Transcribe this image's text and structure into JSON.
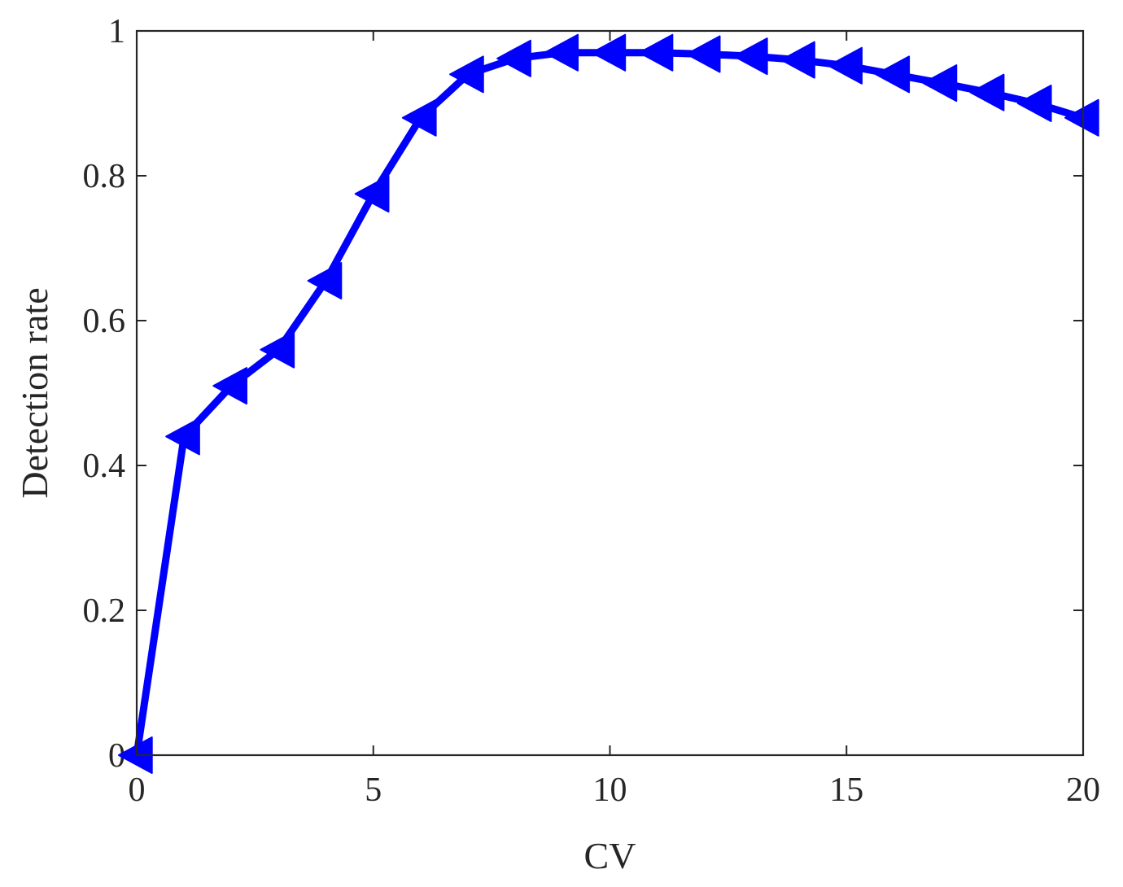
{
  "chart_data": {
    "type": "line",
    "title": "",
    "xlabel": "CV",
    "ylabel": "Detection rate",
    "xlim": [
      0,
      20
    ],
    "ylim": [
      0,
      1
    ],
    "xticks": [
      0,
      5,
      10,
      15,
      20
    ],
    "yticks": [
      0,
      0.2,
      0.4,
      0.6,
      0.8,
      1
    ],
    "xtick_labels": [
      "0",
      "5",
      "10",
      "15",
      "20"
    ],
    "ytick_labels": [
      "0",
      "0.2",
      "0.4",
      "0.6",
      "0.8",
      "1"
    ],
    "grid": false,
    "legend": "none",
    "series": [
      {
        "color": "#0000ff",
        "marker": "left-pointing triangle",
        "x": [
          0,
          1,
          2,
          3,
          4,
          5,
          6,
          7,
          8,
          9,
          10,
          11,
          12,
          13,
          14,
          15,
          16,
          17,
          18,
          19,
          20
        ],
        "y": [
          0,
          0.44,
          0.51,
          0.56,
          0.655,
          0.775,
          0.88,
          0.94,
          0.962,
          0.97,
          0.97,
          0.97,
          0.968,
          0.965,
          0.96,
          0.952,
          0.94,
          0.928,
          0.915,
          0.9,
          0.88
        ]
      }
    ]
  }
}
